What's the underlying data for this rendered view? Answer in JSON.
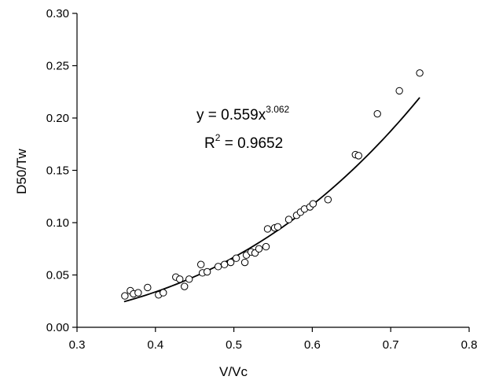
{
  "chart_data": {
    "type": "scatter",
    "xlabel": "V/Vc",
    "ylabel": "D50/Tw",
    "xlim": [
      0.3,
      0.8
    ],
    "ylim": [
      0.0,
      0.3
    ],
    "x_ticks": [
      "0.3",
      "0.4",
      "0.5",
      "0.6",
      "0.7",
      "0.8"
    ],
    "y_ticks": [
      "0.00",
      "0.05",
      "0.10",
      "0.15",
      "0.20",
      "0.25",
      "0.30"
    ],
    "grid": false,
    "legend": "none",
    "series": [
      {
        "marker": "open-circle",
        "points": [
          [
            0.361,
            0.03
          ],
          [
            0.368,
            0.035
          ],
          [
            0.372,
            0.032
          ],
          [
            0.378,
            0.033
          ],
          [
            0.39,
            0.038
          ],
          [
            0.404,
            0.031
          ],
          [
            0.41,
            0.033
          ],
          [
            0.426,
            0.048
          ],
          [
            0.431,
            0.046
          ],
          [
            0.437,
            0.039
          ],
          [
            0.443,
            0.046
          ],
          [
            0.458,
            0.06
          ],
          [
            0.46,
            0.052
          ],
          [
            0.466,
            0.053
          ],
          [
            0.48,
            0.058
          ],
          [
            0.488,
            0.06
          ],
          [
            0.496,
            0.062
          ],
          [
            0.503,
            0.066
          ],
          [
            0.514,
            0.062
          ],
          [
            0.516,
            0.069
          ],
          [
            0.522,
            0.072
          ],
          [
            0.527,
            0.071
          ],
          [
            0.532,
            0.075
          ],
          [
            0.541,
            0.077
          ],
          [
            0.543,
            0.094
          ],
          [
            0.552,
            0.095
          ],
          [
            0.556,
            0.096
          ],
          [
            0.57,
            0.103
          ],
          [
            0.58,
            0.107
          ],
          [
            0.585,
            0.11
          ],
          [
            0.59,
            0.113
          ],
          [
            0.597,
            0.115
          ],
          [
            0.601,
            0.118
          ],
          [
            0.62,
            0.122
          ],
          [
            0.655,
            0.165
          ],
          [
            0.659,
            0.164
          ],
          [
            0.683,
            0.204
          ],
          [
            0.711,
            0.226
          ],
          [
            0.737,
            0.243
          ]
        ]
      }
    ],
    "trendline": {
      "type": "power",
      "coefficient": 0.559,
      "exponent": 3.062,
      "x_range": [
        0.36,
        0.737
      ]
    },
    "annotations": {
      "equation_prefix": "y = 0.559x",
      "equation_exponent": "3.062",
      "r2_prefix": "R",
      "r2_exponent": "2",
      "r2_suffix": " = 0.9652"
    }
  }
}
